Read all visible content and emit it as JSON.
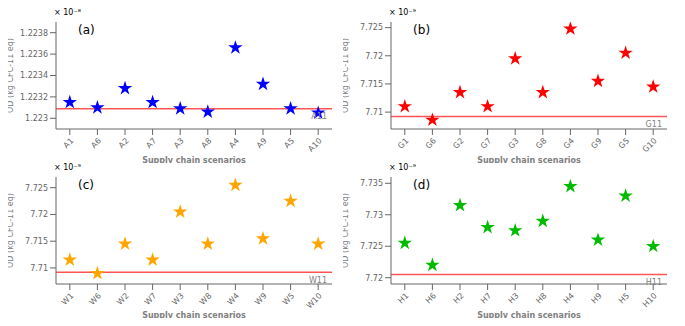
{
  "chart_data": [
    {
      "type": "scatter",
      "title": "(a)",
      "annotations": [
        "× 10⁻⁸"
      ],
      "xlabel": "Supply chain scenarios",
      "ylabel": "OD (kg CFC-11 eq)",
      "marker": "star",
      "color": "#0000FF",
      "categories": [
        "A1",
        "A6",
        "A2",
        "A7",
        "A3",
        "A8",
        "A4",
        "A9",
        "A5",
        "A10"
      ],
      "values": [
        1.22315e-08,
        1.2231e-08,
        1.22328e-08,
        1.22315e-08,
        1.22309e-08,
        1.22306e-08,
        1.22366e-08,
        1.22332e-08,
        1.22309e-08,
        1.22305e-08
      ],
      "reference_line": {
        "value": 1.22309e-08,
        "label": "A11",
        "color": "#FF5555"
      },
      "ylim": [
        1.2229e-08,
        1.2239e-08
      ],
      "yticks": [
        {
          "value": 1.223e-08,
          "label": "1.223"
        },
        {
          "value": 1.2232e-08,
          "label": "1.2232"
        },
        {
          "value": 1.2234e-08,
          "label": "1.2234"
        },
        {
          "value": 1.2236e-08,
          "label": "1.2236"
        },
        {
          "value": 1.2238e-08,
          "label": "1.2238"
        }
      ]
    },
    {
      "type": "scatter",
      "title": "(b)",
      "annotations": [
        "× 10⁻⁹"
      ],
      "xlabel": "Supply chain scenarios",
      "ylabel": "OD (kg CFC-11 eq)",
      "marker": "star",
      "color": "#FF0000",
      "categories": [
        "G1",
        "G6",
        "G2",
        "G7",
        "G3",
        "G8",
        "G4",
        "G9",
        "G5",
        "G10"
      ],
      "values": [
        7.711e-09,
        7.7086e-09,
        7.7135e-09,
        7.711e-09,
        7.7195e-09,
        7.7135e-09,
        7.7248e-09,
        7.7155e-09,
        7.7205e-09,
        7.7145e-09
      ],
      "reference_line": {
        "value": 7.7092e-09,
        "label": "G11",
        "color": "#FF5555"
      },
      "ylim": [
        7.707e-09,
        7.726e-09
      ],
      "yticks": [
        {
          "value": 7.71e-09,
          "label": "7.71"
        },
        {
          "value": 7.715e-09,
          "label": "7.715"
        },
        {
          "value": 7.72e-09,
          "label": "7.72"
        },
        {
          "value": 7.725e-09,
          "label": "7.725"
        }
      ]
    },
    {
      "type": "scatter",
      "title": "(c)",
      "annotations": [
        "× 10⁻⁹"
      ],
      "xlabel": "Supply chain scenarios",
      "ylabel": "OD (kg CFC-11 eq)",
      "marker": "star",
      "color": "#FFA500",
      "categories": [
        "W1",
        "W6",
        "W2",
        "W7",
        "W3",
        "W8",
        "W4",
        "W9",
        "W5",
        "W10"
      ],
      "values": [
        7.7115e-09,
        7.709e-09,
        7.7145e-09,
        7.7115e-09,
        7.7205e-09,
        7.7145e-09,
        7.7255e-09,
        7.7155e-09,
        7.7225e-09,
        7.7145e-09
      ],
      "reference_line": {
        "value": 7.7092e-09,
        "label": "W11",
        "color": "#FF5555"
      },
      "ylim": [
        7.707e-09,
        7.727e-09
      ],
      "yticks": [
        {
          "value": 7.71e-09,
          "label": "7.71"
        },
        {
          "value": 7.715e-09,
          "label": "7.715"
        },
        {
          "value": 7.72e-09,
          "label": "7.72"
        },
        {
          "value": 7.725e-09,
          "label": "7.725"
        }
      ]
    },
    {
      "type": "scatter",
      "title": "(d)",
      "annotations": [
        "× 10⁻⁹"
      ],
      "xlabel": "Supply chain scenarios",
      "ylabel": "OD (kg CFC-11 eq)",
      "marker": "star",
      "color": "#00BB00",
      "categories": [
        "H1",
        "H6",
        "H2",
        "H7",
        "H3",
        "H8",
        "H4",
        "H9",
        "H5",
        "H10"
      ],
      "values": [
        7.7255e-09,
        7.722e-09,
        7.7315e-09,
        7.728e-09,
        7.7275e-09,
        7.729e-09,
        7.7345e-09,
        7.726e-09,
        7.733e-09,
        7.725e-09
      ],
      "reference_line": {
        "value": 7.7205e-09,
        "label": "H11",
        "color": "#FF5555"
      },
      "ylim": [
        7.719e-09,
        7.736e-09
      ],
      "yticks": [
        {
          "value": 7.72e-09,
          "label": "7.72"
        },
        {
          "value": 7.725e-09,
          "label": "7.725"
        },
        {
          "value": 7.73e-09,
          "label": "7.73"
        },
        {
          "value": 7.735e-09,
          "label": "7.735"
        }
      ]
    }
  ]
}
